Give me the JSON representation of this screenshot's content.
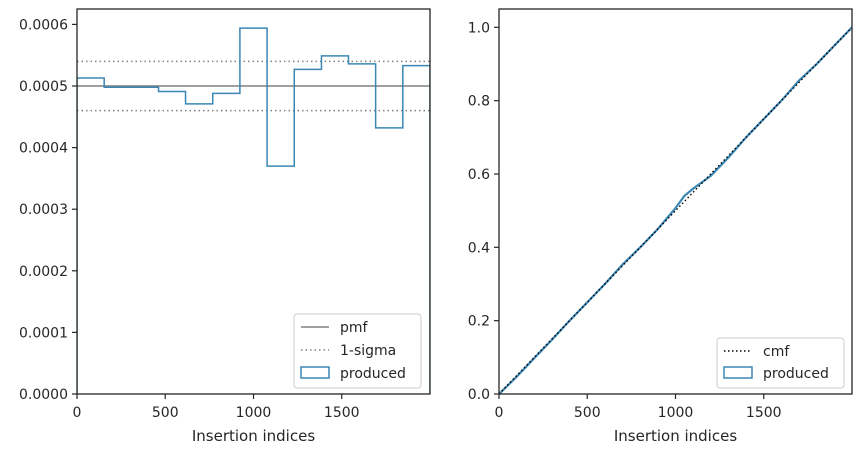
{
  "chart_data": [
    {
      "type": "step",
      "xlabel": "Insertion indices",
      "ylabel": "",
      "xlim": [
        0,
        2000
      ],
      "ylim": [
        0,
        0.000625
      ],
      "xticks": [
        0,
        500,
        1000,
        1500
      ],
      "xtick_labels": [
        "0",
        "500",
        "1000",
        "1500"
      ],
      "yticks": [
        0,
        0.0001,
        0.0002,
        0.0003,
        0.0004,
        0.0005,
        0.0006
      ],
      "ytick_labels": [
        "0.0000",
        "0.0001",
        "0.0002",
        "0.0003",
        "0.0004",
        "0.0005",
        "0.0006"
      ],
      "pmf": 0.0005,
      "sigma_band": [
        0.00046,
        0.00054
      ],
      "bin_edges": [
        0,
        154,
        308,
        462,
        615,
        769,
        923,
        1077,
        1231,
        1385,
        1538,
        1692,
        1846,
        2000
      ],
      "values": [
        0.000513,
        0.000498,
        0.000498,
        0.000491,
        0.000471,
        0.000488,
        0.000594,
        0.00037,
        0.000527,
        0.000549,
        0.000536,
        0.000432,
        0.000533
      ],
      "legend": [
        "pmf",
        "1-sigma",
        "produced"
      ],
      "legend_position": "lower-right",
      "colors": {
        "pmf": "#808080",
        "sigma": "#808080",
        "produced": "#3a87b5"
      }
    },
    {
      "type": "line",
      "xlabel": "Insertion indices",
      "ylabel": "",
      "xlim": [
        0,
        2000
      ],
      "ylim": [
        0,
        1.05
      ],
      "xticks": [
        0,
        500,
        1000,
        1500
      ],
      "xtick_labels": [
        "0",
        "500",
        "1000",
        "1500"
      ],
      "yticks": [
        0,
        0.2,
        0.4,
        0.6,
        0.8,
        1.0
      ],
      "ytick_labels": [
        "0.0",
        "0.2",
        "0.4",
        "0.6",
        "0.8",
        "1.0"
      ],
      "cmf": {
        "x": [
          0,
          2000
        ],
        "y": [
          0,
          1.0
        ]
      },
      "produced": {
        "x": [
          0,
          100,
          200,
          300,
          400,
          500,
          600,
          700,
          800,
          900,
          1000,
          1050,
          1100,
          1200,
          1300,
          1400,
          1500,
          1600,
          1700,
          1800,
          1900,
          2000
        ],
        "y": [
          0,
          0.047,
          0.098,
          0.148,
          0.2,
          0.25,
          0.3,
          0.353,
          0.4,
          0.45,
          0.507,
          0.54,
          0.56,
          0.595,
          0.645,
          0.7,
          0.75,
          0.8,
          0.855,
          0.9,
          0.95,
          1.0
        ]
      },
      "legend": [
        "cmf",
        "produced"
      ],
      "legend_position": "lower-right",
      "colors": {
        "cmf": "#000000",
        "produced": "#3a87b5"
      }
    }
  ]
}
